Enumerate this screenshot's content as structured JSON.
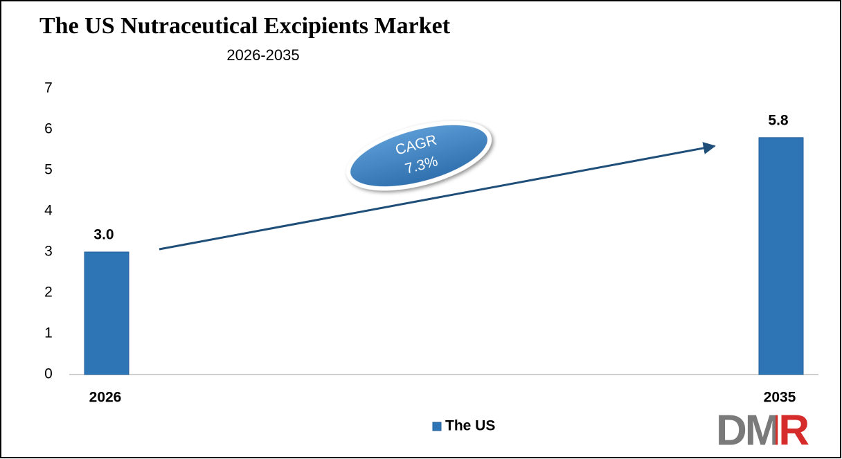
{
  "chart_data": {
    "type": "bar",
    "title": "The US Nutraceutical Excipients Market",
    "subtitle": "2026-2035",
    "categories": [
      "2026",
      "2035"
    ],
    "series": [
      {
        "name": "The US",
        "color": "#2e75b6",
        "values": [
          3.0,
          5.8
        ],
        "value_labels": [
          "3.0",
          "5.8"
        ]
      }
    ],
    "ylim": [
      0,
      7
    ],
    "yticks": [
      0,
      1,
      2,
      3,
      4,
      5,
      6,
      7
    ],
    "grid": false,
    "legend": "bottom",
    "annotation": {
      "lines": [
        "CAGR",
        "7.3%"
      ]
    },
    "logo": "DMR"
  }
}
